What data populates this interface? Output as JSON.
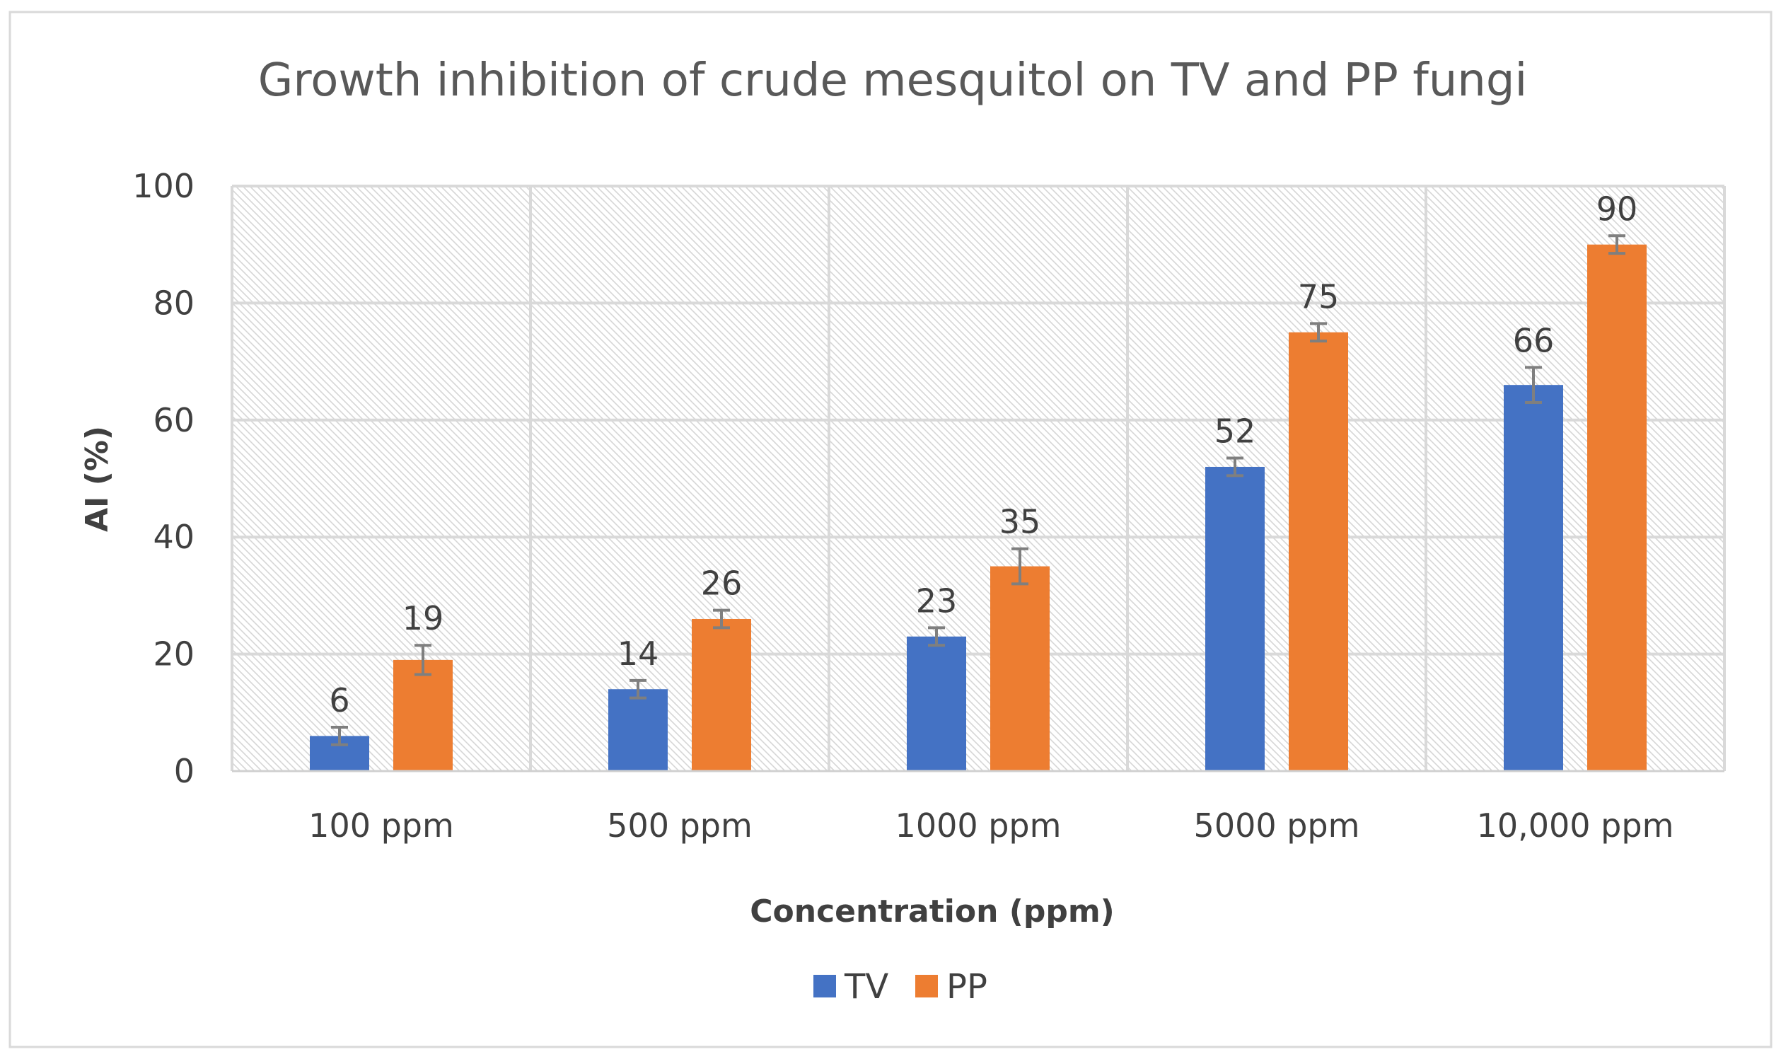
{
  "chart_data": {
    "type": "bar",
    "title": "Growth inhibition of crude mesquitol on TV and PP fungi",
    "xlabel": "Concentration (ppm)",
    "ylabel": "AI (%)",
    "categories": [
      "100  ppm",
      "500 ppm",
      "1000 ppm",
      "5000 ppm",
      "10,000 ppm"
    ],
    "ylim": [
      0,
      100
    ],
    "yticks": [
      0,
      20,
      40,
      60,
      80,
      100
    ],
    "ytick_labels": [
      "0",
      "20",
      "40",
      "60",
      "80",
      "100"
    ],
    "grid": true,
    "legend_position": "bottom-center",
    "series": [
      {
        "name": "TV",
        "color": "#4472C4",
        "values": [
          6,
          14,
          23,
          52,
          66
        ],
        "labels": [
          "6",
          "14",
          "23",
          "52",
          "66"
        ],
        "errors": [
          1.5,
          1.5,
          1.5,
          1.5,
          3
        ]
      },
      {
        "name": "PP",
        "color": "#ED7D31",
        "values": [
          19,
          26,
          35,
          75,
          90
        ],
        "labels": [
          "19",
          "26",
          "35",
          "75",
          "90"
        ],
        "errors": [
          2.5,
          1.5,
          3,
          1.5,
          1.5
        ]
      }
    ]
  }
}
